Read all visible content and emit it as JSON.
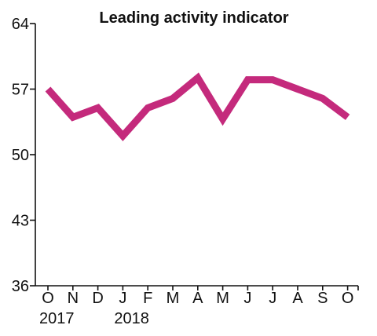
{
  "chart_data": {
    "type": "line",
    "title": "Leading activity indicator",
    "xlabel": "",
    "ylabel": "",
    "categories": [
      "O",
      "N",
      "D",
      "J",
      "F",
      "M",
      "A",
      "M",
      "J",
      "J",
      "A",
      "S",
      "O"
    ],
    "year_labels": [
      {
        "label": "2017",
        "category_index": 0
      },
      {
        "label": "2018",
        "category_index": 3
      }
    ],
    "series": [
      {
        "values": [
          57.0,
          54.0,
          55.0,
          52.0,
          55.0,
          56.0,
          58.2,
          53.8,
          58.0,
          58.0,
          57.0,
          56.0,
          54.0
        ]
      }
    ],
    "ylim": [
      36,
      64
    ],
    "yticks": [
      36,
      43,
      50,
      57,
      64
    ],
    "grid": false,
    "legend": "none",
    "line_color": "#c42a7c"
  }
}
